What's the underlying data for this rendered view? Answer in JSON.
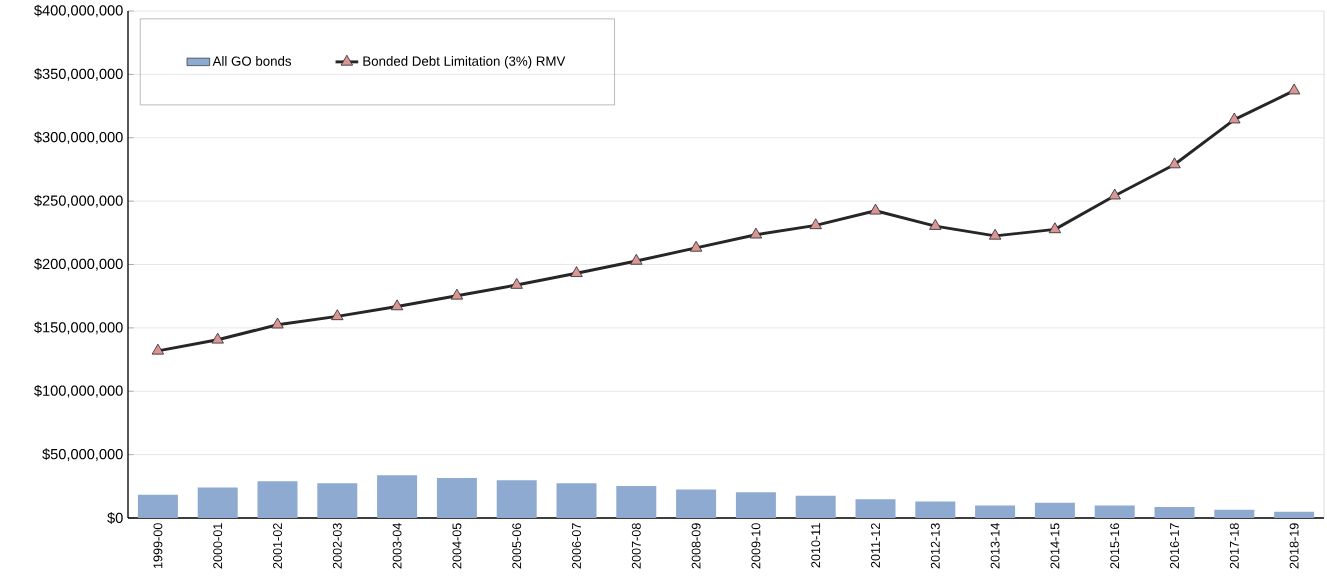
{
  "chart_data": {
    "type": "bar",
    "categories": [
      "1999-00",
      "2000-01",
      "2001-02",
      "2002-03",
      "2003-04",
      "2004-05",
      "2005-06",
      "2006-07",
      "2007-08",
      "2008-09",
      "2009-10",
      "2010-11",
      "2011-12",
      "2012-13",
      "2013-14",
      "2014-15",
      "2015-16",
      "2016-17",
      "2017-18",
      "2018-19"
    ],
    "series": [
      {
        "name": "All GO bonds",
        "color": "#8eaad0",
        "values": [
          18300000,
          24000000,
          29000000,
          27500000,
          33800000,
          31600000,
          29700000,
          27500000,
          25200000,
          22400000,
          20400000,
          17600000,
          14800000,
          13000000,
          9900000,
          12000000,
          9900000,
          8700000,
          6500000,
          4900000
        ]
      },
      {
        "name": "Bonded Debt Limitation (3%) RMV",
        "type": "line",
        "color": "#262626",
        "marker": "triangle",
        "line_style": "solid",
        "values": [
          131900000,
          140600000,
          152500000,
          159100000,
          166900000,
          175300000,
          183800000,
          193100000,
          202800000,
          213100000,
          223500000,
          230900000,
          242400000,
          230300000,
          222600000,
          227700000,
          254300000,
          278900000,
          314300000,
          337200000
        ]
      }
    ],
    "ylim": [
      0,
      400000000
    ],
    "yticks": [
      {
        "value": 0,
        "label": "$0"
      },
      {
        "value": 50000000,
        "label": "$50,000,000"
      },
      {
        "value": 100000000,
        "label": "$100,000,000"
      },
      {
        "value": 150000000,
        "label": "$150,000,000"
      },
      {
        "value": 200000000,
        "label": "$200,000,000"
      },
      {
        "value": 250000000,
        "label": "$250,000,000"
      },
      {
        "value": 300000000,
        "label": "$300,000,000"
      },
      {
        "value": 350000000,
        "label": "$350,000,000"
      },
      {
        "value": 400000000,
        "label": "$400,000,000"
      }
    ],
    "grid": "y",
    "legend": "top left"
  }
}
